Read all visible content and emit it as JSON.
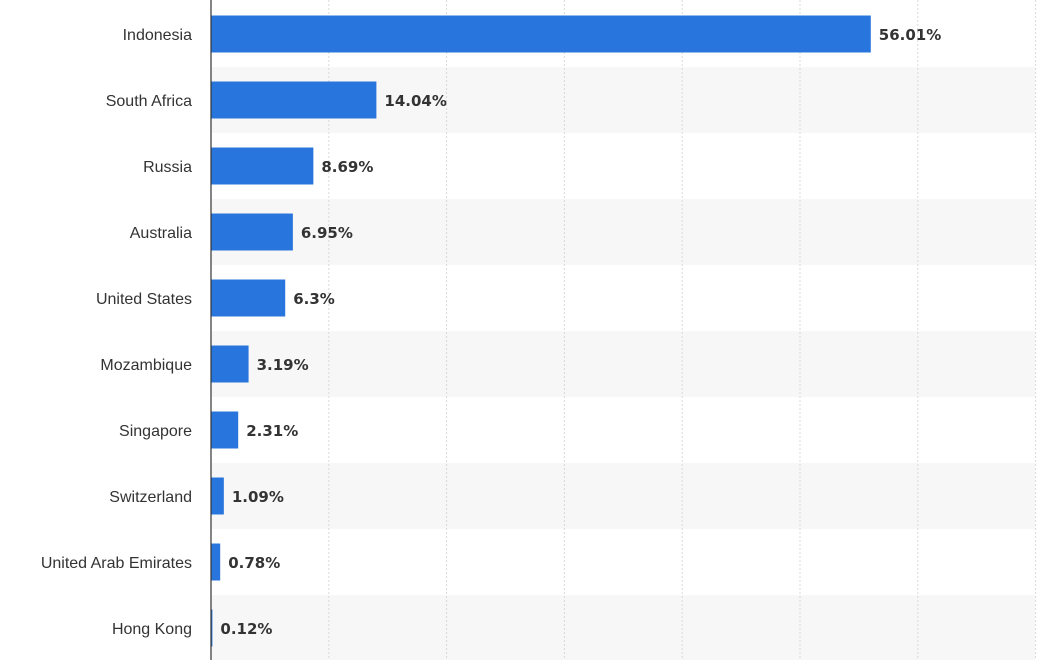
{
  "chart_data": {
    "type": "bar",
    "orientation": "horizontal",
    "categories": [
      "Indonesia",
      "South Africa",
      "Russia",
      "Australia",
      "United States",
      "Mozambique",
      "Singapore",
      "Switzerland",
      "United Arab Emirates",
      "Hong Kong"
    ],
    "values": [
      56.01,
      14.04,
      8.69,
      6.95,
      6.3,
      3.19,
      2.31,
      1.09,
      0.78,
      0.12
    ],
    "value_labels": [
      "56.01%",
      "14.04%",
      "8.69%",
      "6.95%",
      "6.3%",
      "3.19%",
      "2.31%",
      "1.09%",
      "0.78%",
      "0.12%"
    ],
    "title": "",
    "xlabel": "",
    "ylabel": "",
    "xlim": [
      0,
      70
    ],
    "grid": true,
    "legend": "none",
    "colors": {
      "bar": "#2876dd",
      "band": "#f7f7f7",
      "grid": "#d9d9d9",
      "axis": "#333333",
      "text": "#333333"
    }
  }
}
